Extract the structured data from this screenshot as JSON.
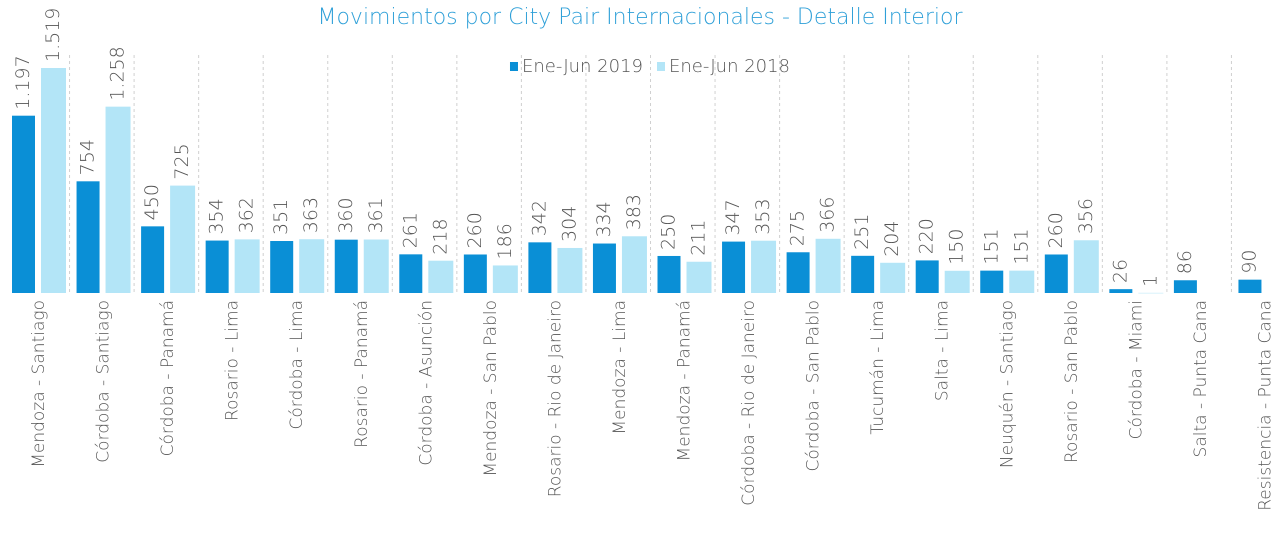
{
  "chart_data": {
    "type": "bar",
    "title": "Movimientos por City Pair  Internacionales - Detalle Interior",
    "categories": [
      "Mendoza - Santiago",
      "Córdoba - Santiago",
      "Córdoba - Panamá",
      "Rosario - Lima",
      "Córdoba - Lima",
      "Rosario - Panamá",
      "Córdoba - Asunción",
      "Mendoza - San Pablo",
      "Rosario - Rio de Janeiro",
      "Mendoza - Lima",
      "Mendoza - Panamá",
      "Córdoba - Rio de Janeiro",
      "Córdoba - San Pablo",
      "Tucumán - Lima",
      "Salta - Lima",
      "Neuquén - Santiago",
      "Rosario - San Pablo",
      "Córdoba - Miami",
      "Salta - Punta Cana",
      "Resistencia - Punta Cana"
    ],
    "series": [
      {
        "name": "Ene-Jun 2019",
        "color": "#0a8fd6",
        "values": [
          1197,
          754,
          450,
          354,
          351,
          360,
          261,
          260,
          342,
          334,
          250,
          347,
          275,
          251,
          220,
          151,
          260,
          26,
          86,
          90
        ],
        "value_labels": [
          "1.197",
          "754",
          "450",
          "354",
          "351",
          "360",
          "261",
          "260",
          "342",
          "334",
          "250",
          "347",
          "275",
          "251",
          "220",
          "151",
          "260",
          "26",
          "86",
          "90"
        ]
      },
      {
        "name": "Ene-Jun 2018",
        "color": "#b3e5f7",
        "values": [
          1519,
          1258,
          725,
          362,
          363,
          361,
          218,
          186,
          304,
          383,
          211,
          353,
          366,
          204,
          150,
          151,
          356,
          1,
          null,
          null
        ],
        "value_labels": [
          "1.519",
          "1.258",
          "725",
          "362",
          "363",
          "361",
          "218",
          "186",
          "304",
          "383",
          "211",
          "353",
          "366",
          "204",
          "150",
          "151",
          "356",
          "1",
          null,
          null
        ]
      }
    ],
    "legend": "top"
  }
}
